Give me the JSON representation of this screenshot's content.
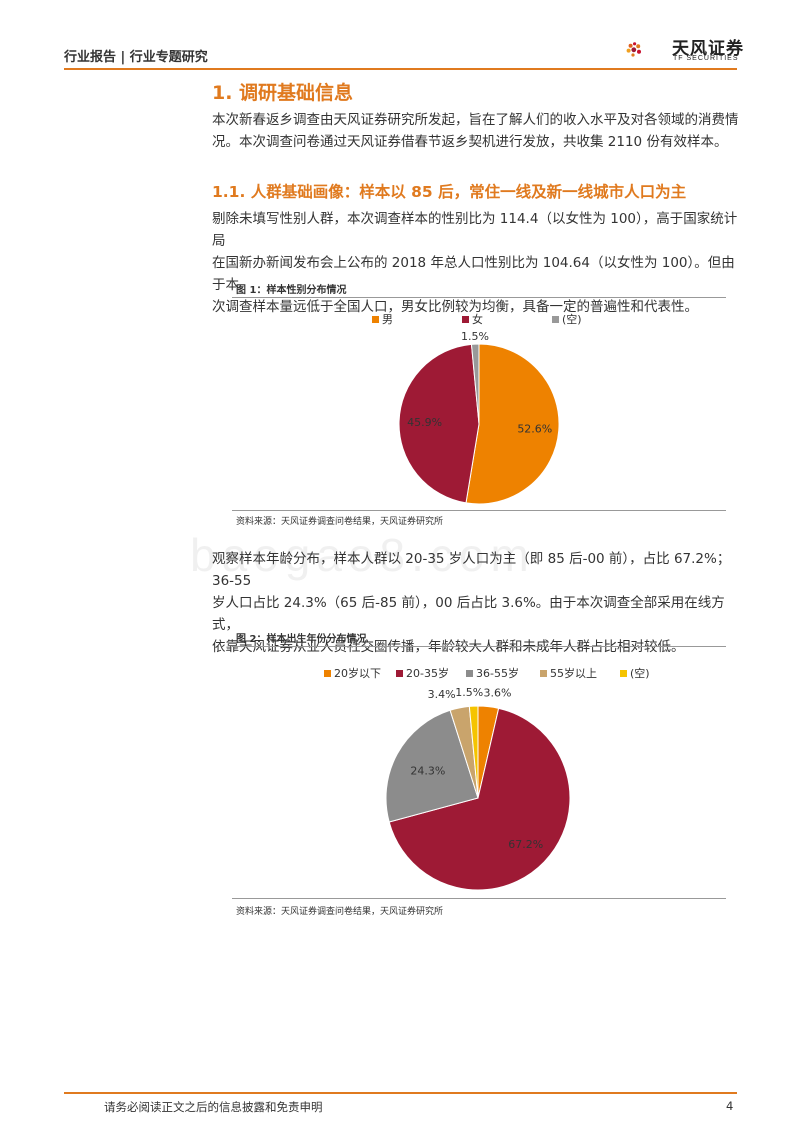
{
  "header": {
    "text": "行业报告 | 行业专题研究",
    "logo_cn": "天风证券",
    "logo_en": "TF SECURITIES"
  },
  "section": {
    "heading": "1. 调研基础信息",
    "intro_lines": [
      "本次新春返乡调查由天风证券研究所发起，旨在了解人们的收入水平及对各领域的消费情",
      "况。本次调查问卷通过天风证券借春节返乡契机进行发放，共收集 2110 份有效样本。"
    ]
  },
  "subsection": {
    "heading": "1.1. 人群基础画像：样本以 85 后，常住一线及新一线城市人口为主",
    "para1_lines": [
      "剔除未填写性别人群，本次调查样本的性别比为 114.4（以女性为 100），高于国家统计局",
      "在国新办新闻发布会上公布的 2018 年总人口性别比为 104.64（以女性为 100）。但由于本",
      "次调查样本量远低于全国人口，男女比例较为均衡，具备一定的普遍性和代表性。"
    ],
    "para2_lines": [
      "观察样本年龄分布，样本人群以 20-35 岁人口为主（即 85 后-00 前），占比 67.2%；36-55",
      "岁人口占比 24.3%（65 后-85 前），00 后占比 3.6%。由于本次调查全部采用在线方式，",
      "依靠天风证券从业人员社交圈传播，年龄较大人群和未成年人群占比相对较低。"
    ]
  },
  "figure1": {
    "title": "图 1：样本性别分布情况",
    "source": "资料来源：天风证券调查问卷结果，天风证券研究所"
  },
  "figure2": {
    "title": "图 2：样本出生年份分布情况",
    "source": "资料来源：天风证券调查问卷结果，天风证券研究所"
  },
  "watermark": "baogao8.com",
  "footer": {
    "disclaimer": "请务必阅读正文之后的信息披露和免责申明",
    "page": "4"
  },
  "chart_data": [
    {
      "type": "pie",
      "title": "",
      "legend_position": "top",
      "series": [
        {
          "name": "男",
          "value": 52.6,
          "label": "52.6%",
          "color": "#ee8200"
        },
        {
          "name": "女",
          "value": 45.9,
          "label": "45.9%",
          "color": "#9e1a35"
        },
        {
          "name": "(空)",
          "value": 1.5,
          "label": "1.5%",
          "color": "#999999"
        }
      ]
    },
    {
      "type": "pie",
      "title": "",
      "legend_position": "top",
      "series": [
        {
          "name": "20岁以下",
          "value": 3.6,
          "label": "3.6%",
          "color": "#ee8200"
        },
        {
          "name": "20-35岁",
          "value": 67.2,
          "label": "67.2%",
          "color": "#9e1a35"
        },
        {
          "name": "36-55岁",
          "value": 24.3,
          "label": "24.3%",
          "color": "#8c8c8c"
        },
        {
          "name": "55岁以上",
          "value": 3.4,
          "label": "3.4%",
          "color": "#c9a46c"
        },
        {
          "name": "(空)",
          "value": 1.5,
          "label": "1.5%",
          "color": "#f5c400"
        }
      ]
    }
  ]
}
